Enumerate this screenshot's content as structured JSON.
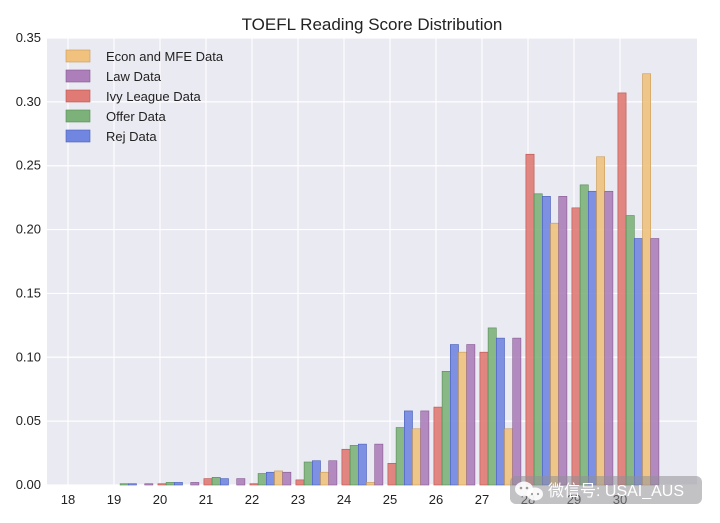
{
  "chart_data": {
    "type": "bar",
    "title": "TOEFL Reading Score Distribution",
    "xlabel": "",
    "ylabel": "",
    "categories": [
      "18",
      "19",
      "20",
      "21",
      "22",
      "23",
      "24",
      "25",
      "26",
      "27",
      "28",
      "29",
      "30"
    ],
    "ylim": [
      0,
      0.35
    ],
    "yticks": [
      "0.00",
      "0.05",
      "0.10",
      "0.15",
      "0.20",
      "0.25",
      "0.30",
      "0.35"
    ],
    "grid": true,
    "legend_position": "top-left",
    "series": [
      {
        "name": "Ivy League Data",
        "color": "#e07a74",
        "values": [
          0.0,
          0.0,
          0.001,
          0.005,
          0.001,
          0.004,
          0.028,
          0.017,
          0.061,
          0.104,
          0.259,
          0.217,
          0.307
        ]
      },
      {
        "name": "Offer Data",
        "color": "#7cb27a",
        "values": [
          0.0,
          0.001,
          0.002,
          0.006,
          0.009,
          0.018,
          0.031,
          0.045,
          0.089,
          0.123,
          0.228,
          0.235,
          0.211
        ]
      },
      {
        "name": "Rej Data",
        "color": "#7186e0",
        "values": [
          0.0,
          0.001,
          0.002,
          0.005,
          0.01,
          0.019,
          0.032,
          0.058,
          0.11,
          0.115,
          0.226,
          0.23,
          0.193
        ]
      },
      {
        "name": "Econ and MFE Data",
        "color": "#f0c27e",
        "values": [
          0.0,
          0.0,
          0.0,
          0.0,
          0.011,
          0.01,
          0.002,
          0.044,
          0.104,
          0.044,
          0.205,
          0.257,
          0.322
        ]
      },
      {
        "name": "Law Data",
        "color": "#ad7fba",
        "values": [
          0.0,
          0.001,
          0.002,
          0.005,
          0.01,
          0.019,
          0.032,
          0.058,
          0.11,
          0.115,
          0.226,
          0.23,
          0.193
        ]
      }
    ],
    "legend_order": [
      "Econ and MFE Data",
      "Law Data",
      "Ivy League Data",
      "Offer Data",
      "Rej Data"
    ]
  },
  "watermark": {
    "text": "微信号: USAI_AUS",
    "icon": "wechat-icon"
  },
  "colors": {
    "plot_background": "#eaeaf2",
    "grid": "#ffffff",
    "page_background": "#ffffff"
  }
}
